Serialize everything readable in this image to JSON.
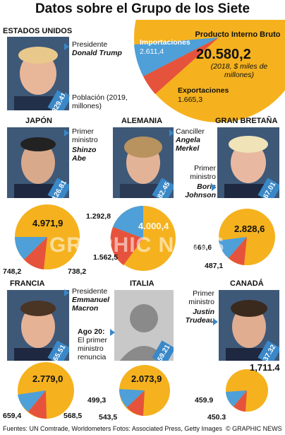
{
  "title": "Datos sobre el Grupo de los Siete",
  "headline_gdp_label": "Producto Interno Bruto",
  "headline_gdp_value": "20.580,2",
  "headline_gdp_note": "(2018, $ miles de millones)",
  "imports_label": "Importaciones",
  "imports_value": "2.611,4",
  "exports_label": "Exportaciones",
  "exports_value": "1.665,3",
  "population_note": "Población (2019, millones)",
  "countries": {
    "usa": {
      "name": "ESTADOS UNIDOS",
      "role": "Presidente",
      "leader": "Donald Trump",
      "pop": "329.41"
    },
    "japan": {
      "name": "JAPÓN",
      "role": "Primer ministro",
      "leader": "Shinzo Abe",
      "pop": "126.81",
      "gdp": "4.971,9",
      "imp": "748,2",
      "exp": "738,2"
    },
    "germany": {
      "name": "ALEMANIA",
      "role": "Canciller",
      "leader": "Angela Merkel",
      "pop": "82.45",
      "gdp": "4.000,4",
      "imp": "1.292,8",
      "exp": "1.562,5"
    },
    "uk": {
      "name": "GRAN BRETAÑA",
      "role": "Primer ministro",
      "leader": "Boris Johnson",
      "pop": "67.01",
      "gdp": "2.828,6",
      "imp": "669,6",
      "exp": "487,1"
    },
    "france": {
      "name": "FRANCIA",
      "role": "Presidente",
      "leader": "Emmanuel Macron",
      "pop": "65.51",
      "gdp": "2.779,0",
      "imp": "659,4",
      "exp": "568,5"
    },
    "italy": {
      "name": "ITALIA",
      "note_bold": "Ago 20:",
      "note": "El primer ministro renuncia",
      "pop": "59.21",
      "gdp": "2.073,9",
      "imp": "499,3",
      "exp": "543,5"
    },
    "canada": {
      "name": "CANADÁ",
      "role": "Primer ministro",
      "leader": "Justin Trudeau",
      "pop": "37.32",
      "gdp": "1,711.4",
      "imp": "459.9",
      "exp": "450.3"
    }
  },
  "watermark": "GRAPHIC NEWS",
  "footer": "Fuentes: UN Comtrade, Worldometers Fotos: Associated Press, Getty Images",
  "credit": "© GRAPHIC NEWS",
  "colors": {
    "gdp": "#f5b21e",
    "imports": "#4f9fd8",
    "exports": "#e6533c",
    "accent": "#3a88c8"
  }
}
